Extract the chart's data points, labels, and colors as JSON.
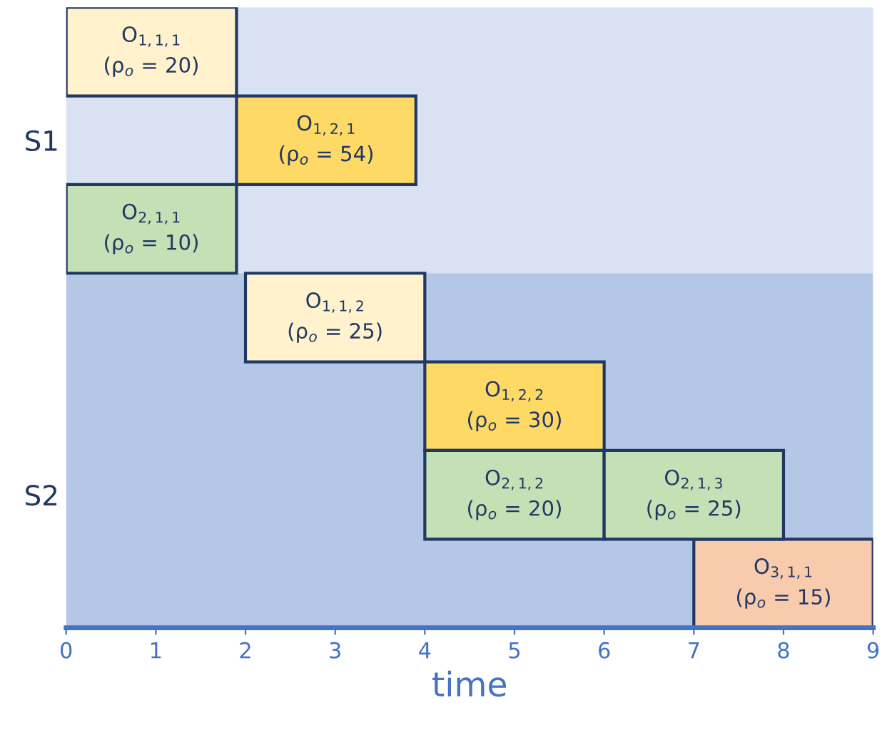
{
  "chart_data": {
    "type": "bar",
    "orientation": "horizontal",
    "xlabel": "time",
    "categories": [
      null,
      "S1",
      null,
      null,
      null,
      "S2",
      null
    ],
    "xlim": [
      0,
      9
    ],
    "xticks": [
      0,
      1,
      2,
      3,
      4,
      5,
      6,
      7,
      8,
      9
    ],
    "grid": false,
    "tick_labels": "x",
    "series": [
      {
        "colors": [
          "#fff2cc",
          "#ffd966",
          "#c5e0b4",
          "#fff2cc",
          "#ffd966",
          "#c5e0b4",
          "#f8cbad"
        ],
        "values": [
          1.9,
          2,
          1.9,
          2,
          2,
          2,
          2
        ],
        "base": [
          0,
          1.9,
          0,
          2,
          4,
          4,
          7
        ],
        "value_labels": [
          "O$_{1,1,1}$\n(ρ$_{o}$ = 20)",
          "O$_{1,2,1}$\n(ρ$_{o}$ = 54)",
          "O$_{2,1,1}$\n(ρ$_{o}$ = 10)",
          "O$_{1,1,2}$\n(ρ$_{o}$ = 25)",
          "O$_{1,2,2}$\n(ρ$_{o}$ = 30)",
          "O$_{2,1,2}$\n(ρ$_{o}$ = 20)",
          "O$_{3,1,1}$\n(ρ$_{o}$ = 15)"
        ]
      },
      {
        "colors": [
          null,
          null,
          null,
          null,
          null,
          "#c5e0b4",
          null
        ],
        "values": [
          null,
          null,
          null,
          null,
          null,
          2,
          null
        ],
        "base": [
          null,
          null,
          null,
          null,
          null,
          6,
          null
        ],
        "value_labels": [
          null,
          null,
          null,
          null,
          null,
          "O$_{2,1,3}$\n(ρ$_{o}$ = 25)",
          null
        ]
      }
    ]
  }
}
